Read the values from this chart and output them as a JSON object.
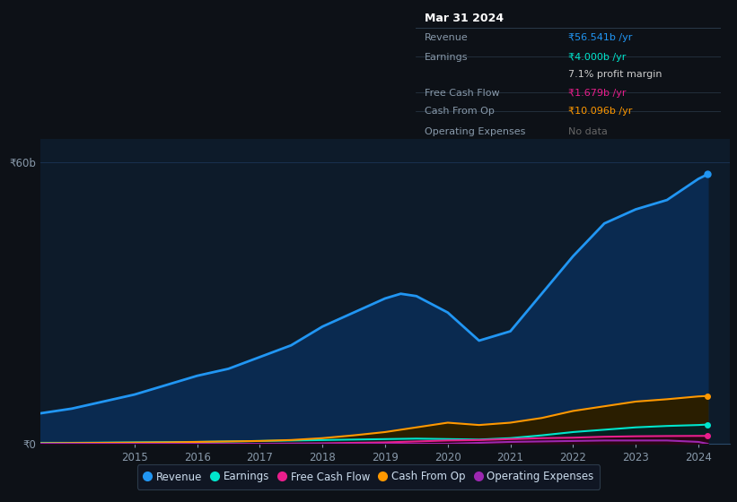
{
  "background_color": "#0d1117",
  "chart_bg_color": "#0d1b2a",
  "grid_color": "#1e3a5f",
  "years": [
    2013.5,
    2014,
    2014.5,
    2015,
    2015.5,
    2016,
    2016.5,
    2017,
    2017.5,
    2018,
    2018.5,
    2019,
    2019.25,
    2019.5,
    2020,
    2020.5,
    2021,
    2021.5,
    2022,
    2022.5,
    2023,
    2023.5,
    2024,
    2024.15
  ],
  "revenue": [
    6.5,
    7.5,
    9.0,
    10.5,
    12.5,
    14.5,
    16.0,
    18.5,
    21.0,
    25.0,
    28.0,
    31.0,
    32.0,
    31.5,
    28.0,
    22.0,
    24.0,
    32.0,
    40.0,
    47.0,
    50.0,
    52.0,
    56.5,
    57.5
  ],
  "earnings": [
    0.2,
    0.2,
    0.25,
    0.3,
    0.35,
    0.4,
    0.5,
    0.6,
    0.7,
    0.8,
    0.9,
    1.0,
    1.05,
    1.1,
    1.0,
    0.9,
    1.2,
    1.8,
    2.5,
    3.0,
    3.5,
    3.8,
    4.0,
    4.1
  ],
  "free_cash_flow": [
    0.0,
    0.0,
    0.0,
    0.0,
    0.0,
    0.0,
    0.0,
    0.0,
    0.05,
    0.1,
    0.2,
    0.3,
    0.4,
    0.5,
    0.7,
    0.8,
    1.0,
    1.2,
    1.3,
    1.5,
    1.6,
    1.65,
    1.68,
    1.68
  ],
  "cash_from_op": [
    0.1,
    0.15,
    0.2,
    0.25,
    0.3,
    0.4,
    0.5,
    0.6,
    0.8,
    1.2,
    1.8,
    2.5,
    3.0,
    3.5,
    4.5,
    4.0,
    4.5,
    5.5,
    7.0,
    8.0,
    9.0,
    9.5,
    10.1,
    10.2
  ],
  "operating_exp": [
    0.0,
    0.0,
    0.0,
    0.0,
    0.0,
    0.0,
    0.0,
    0.0,
    0.0,
    0.0,
    0.0,
    0.0,
    0.0,
    0.0,
    0.0,
    0.2,
    0.4,
    0.5,
    0.6,
    0.7,
    0.7,
    0.7,
    0.4,
    0.0
  ],
  "revenue_color": "#2196f3",
  "earnings_color": "#00e5cc",
  "fcf_color": "#e91e8c",
  "cashop_color": "#ff9800",
  "opexp_color": "#9c27b0",
  "revenue_fill": "#0a2a50",
  "cashop_fill": "#2a1e00",
  "earnings_fill": "#062020",
  "fcf_fill": "#2a0515",
  "opexp_fill": "#1a0a2a",
  "legend_labels": [
    "Revenue",
    "Earnings",
    "Free Cash Flow",
    "Cash From Op",
    "Operating Expenses"
  ],
  "tooltip_title": "Mar 31 2024",
  "tooltip_rows": [
    {
      "label": "Revenue",
      "value": "₹56.541b /yr",
      "value_color": "#2196f3"
    },
    {
      "label": "Earnings",
      "value": "₹4.000b /yr",
      "value_color": "#00e5cc"
    },
    {
      "label": "",
      "value": "7.1% profit margin",
      "value_color": "#cccccc"
    },
    {
      "label": "Free Cash Flow",
      "value": "₹1.679b /yr",
      "value_color": "#e91e8c"
    },
    {
      "label": "Cash From Op",
      "value": "₹10.096b /yr",
      "value_color": "#ff9800"
    },
    {
      "label": "Operating Expenses",
      "value": "No data",
      "value_color": "#666666"
    }
  ],
  "xlim": [
    2013.5,
    2024.5
  ],
  "ylim": [
    0,
    65
  ],
  "xticks": [
    2015,
    2016,
    2017,
    2018,
    2019,
    2020,
    2021,
    2022,
    2023,
    2024
  ],
  "ytick_positions": [
    0,
    60
  ],
  "ytick_labels": [
    "₹0",
    "₹60b"
  ]
}
